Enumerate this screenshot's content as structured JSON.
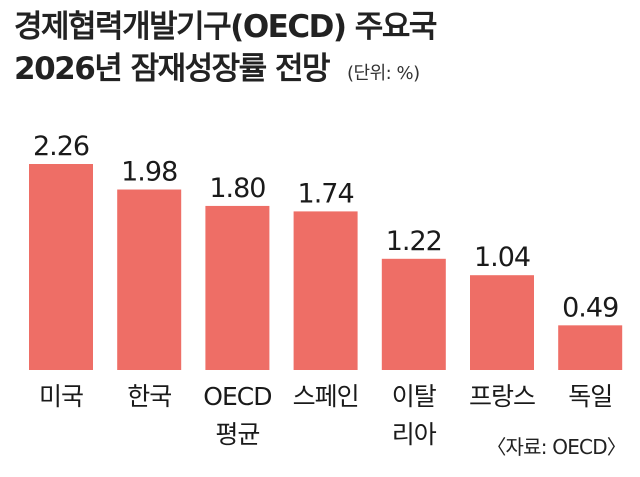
{
  "header": {
    "title_line1": "경제협력개발기구(OECD) 주요국",
    "title_line2": "2026년 잠재성장률 전망",
    "unit": "(단위: %)"
  },
  "source": "〈자료: OECD〉",
  "colors": {
    "bar": "#ee6e66",
    "text": "#1a1a1a"
  },
  "chart_data": {
    "type": "bar",
    "title": "경제협력개발기구(OECD) 주요국 2026년 잠재성장률 전망",
    "unit": "(단위: %)",
    "categories": [
      "미국",
      "한국",
      "OECD\n평균",
      "스페인",
      "이탈\n리아",
      "프랑스",
      "독일"
    ],
    "values": [
      2.26,
      1.98,
      1.8,
      1.74,
      1.22,
      1.04,
      0.49
    ],
    "value_labels": [
      "2.26",
      "1.98",
      "1.80",
      "1.74",
      "1.22",
      "1.04",
      "0.49"
    ],
    "ylim": [
      0,
      2.26
    ],
    "grid": false,
    "legend": "none"
  }
}
